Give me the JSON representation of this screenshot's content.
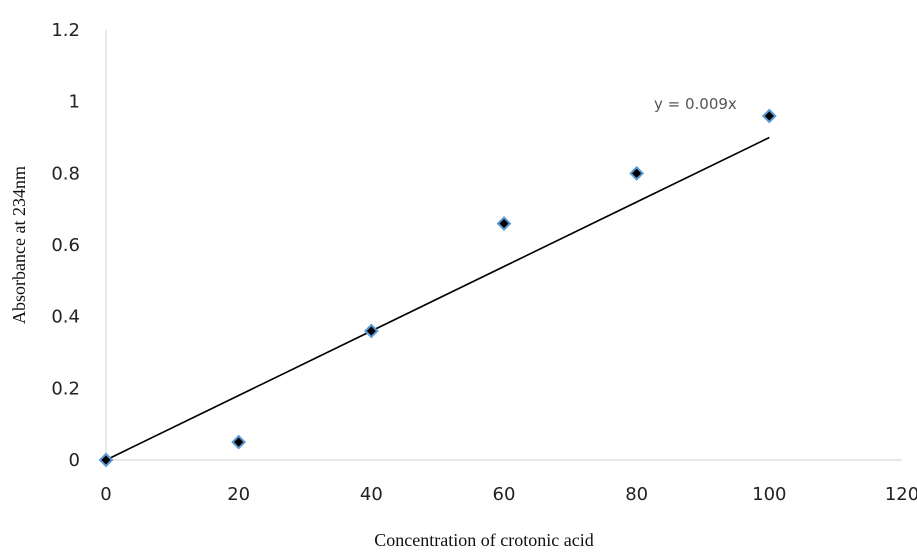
{
  "chart_data": {
    "type": "scatter",
    "title": "",
    "xlabel": "Concentration of crotonic acid",
    "ylabel": "Absorbance at 234nm",
    "xlim": [
      0,
      120
    ],
    "ylim": [
      0,
      1.2
    ],
    "x_ticks": [
      "0",
      "20",
      "40",
      "60",
      "80",
      "100",
      "120"
    ],
    "y_ticks": [
      "0",
      "0.2",
      "0.4",
      "0.6",
      "0.8",
      "1",
      "1.2"
    ],
    "grid": false,
    "legend": "none",
    "series": [
      {
        "marker": "diamond",
        "color": "#000000",
        "edge_color": "#5b9bd5",
        "points": [
          {
            "x": 0,
            "y": 0
          },
          {
            "x": 20,
            "y": 0.05
          },
          {
            "x": 40,
            "y": 0.36
          },
          {
            "x": 60,
            "y": 0.66
          },
          {
            "x": 80,
            "y": 0.8
          },
          {
            "x": 100,
            "y": 0.96
          }
        ]
      }
    ],
    "trendline": {
      "type": "linear",
      "slope": 0.009,
      "intercept": 0,
      "x_range": [
        0,
        100
      ],
      "equation_label": "y = 0.009x",
      "color": "#000000"
    },
    "axis_color": "#d0d0d0"
  }
}
